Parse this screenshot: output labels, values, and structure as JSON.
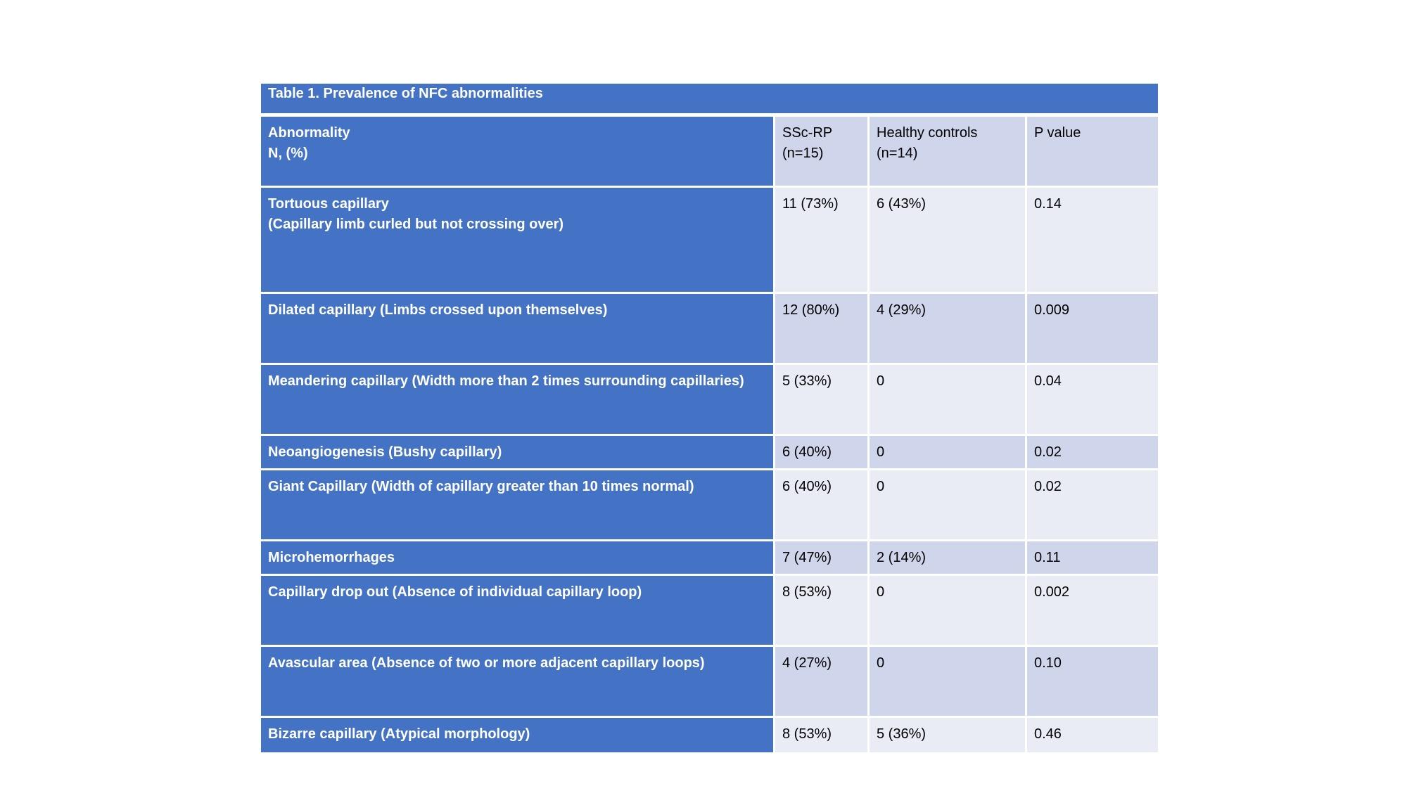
{
  "table": {
    "title": "Table 1. Prevalence of NFC abnormalities",
    "header": {
      "abnormality_line1": "Abnormality",
      "abnormality_line2": "N, (%)",
      "ssc_line1": "SSc-RP",
      "ssc_line2": "(n=15)",
      "hc_line1": "Healthy controls",
      "hc_line2": "(n=14)",
      "p_label": "P value"
    },
    "rows": [
      {
        "abnormality": "Tortuous capillary",
        "abnormality_sub": "(Capillary limb curled but not crossing over)",
        "ssc": "11 (73%)",
        "hc": "6 (43%)",
        "p": "0.14"
      },
      {
        "abnormality": "Dilated capillary (Limbs crossed upon themselves)",
        "ssc": "12 (80%)",
        "hc": "4 (29%)",
        "p": "0.009"
      },
      {
        "abnormality": "Meandering capillary (Width more than 2 times surrounding capillaries)",
        "ssc": "5 (33%)",
        "hc": "0",
        "p": "0.04"
      },
      {
        "abnormality": "Neoangiogenesis (Bushy capillary)",
        "ssc": "6 (40%)",
        "hc": "0",
        "p": "0.02"
      },
      {
        "abnormality": "Giant Capillary (Width of capillary greater than 10 times normal)",
        "ssc": "6 (40%)",
        "hc": "0",
        "p": "0.02"
      },
      {
        "abnormality": "Microhemorrhages",
        "ssc": "7 (47%)",
        "hc": "2 (14%)",
        "p": "0.11"
      },
      {
        "abnormality": "Capillary drop out (Absence of individual capillary loop)",
        "ssc": "8 (53%)",
        "hc": "0",
        "p": "0.002"
      },
      {
        "abnormality": "Avascular area (Absence of two or more adjacent capillary loops)",
        "ssc": "4 (27%)",
        "hc": "0",
        "p": "0.10"
      },
      {
        "abnormality": "Bizarre capillary (Atypical morphology)",
        "ssc": "8 (53%)",
        "hc": "5 (36%)",
        "p": "0.46"
      }
    ]
  }
}
